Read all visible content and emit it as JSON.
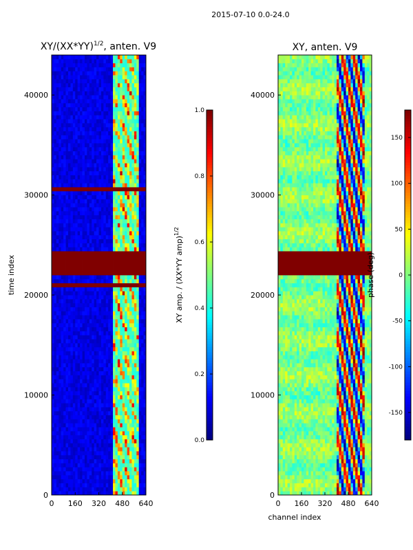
{
  "suptitle": "2015-07-10 0.0-24.0",
  "chart_data": [
    {
      "type": "heatmap",
      "title_prefix": "XY/(XX*YY)",
      "title_exponent": "1/2",
      "title_suffix": ", anten. V9",
      "xlabel": "",
      "ylabel": "time index",
      "xlim": [
        0,
        640
      ],
      "ylim": [
        0,
        44000
      ],
      "xticks": [
        0,
        160,
        320,
        480,
        640
      ],
      "yticks": [
        0,
        10000,
        20000,
        30000,
        40000
      ],
      "colorbar": {
        "label_main": "XY amp. / (XX*YY amp)",
        "label_exponent": "1/2",
        "range": [
          0.0,
          1.0
        ],
        "ticks": [
          "0.0",
          "0.2",
          "0.4",
          "0.6",
          "0.8",
          "1.0"
        ],
        "tick_values": [
          0.0,
          0.2,
          0.4,
          0.6,
          0.8,
          1.0
        ]
      },
      "description": "Mostly low amplitude (~0.05) for channels 0-410; elevated structured amplitude for channels ~410-600; saturated flagged bands near time index 21000-24500 and 30500",
      "flagged_time_bands": [
        [
          20800,
          21200
        ],
        [
          21900,
          24500
        ],
        [
          30300,
          30800
        ]
      ]
    },
    {
      "type": "heatmap",
      "title": "XY, anten. V9",
      "xlabel": "channel index",
      "ylabel": "",
      "xlim": [
        0,
        640
      ],
      "ylim": [
        0,
        44000
      ],
      "xticks": [
        0,
        160,
        320,
        480,
        640
      ],
      "yticks": [
        0,
        10000,
        20000,
        30000,
        40000
      ],
      "colorbar": {
        "label": "phase (deg)",
        "range": [
          -180,
          180
        ],
        "ticks": [
          "-150",
          "-100",
          "-50",
          "0",
          "50",
          "100",
          "150"
        ],
        "tick_values": [
          -150,
          -100,
          -50,
          0,
          50,
          100,
          150
        ]
      },
      "description": "Phase near 0 deg (green) over most channels with horizontal striping; large phase excursions (red/blue) for channels ~400-600",
      "flagged_time_bands": [
        [
          21900,
          24500
        ]
      ]
    }
  ]
}
